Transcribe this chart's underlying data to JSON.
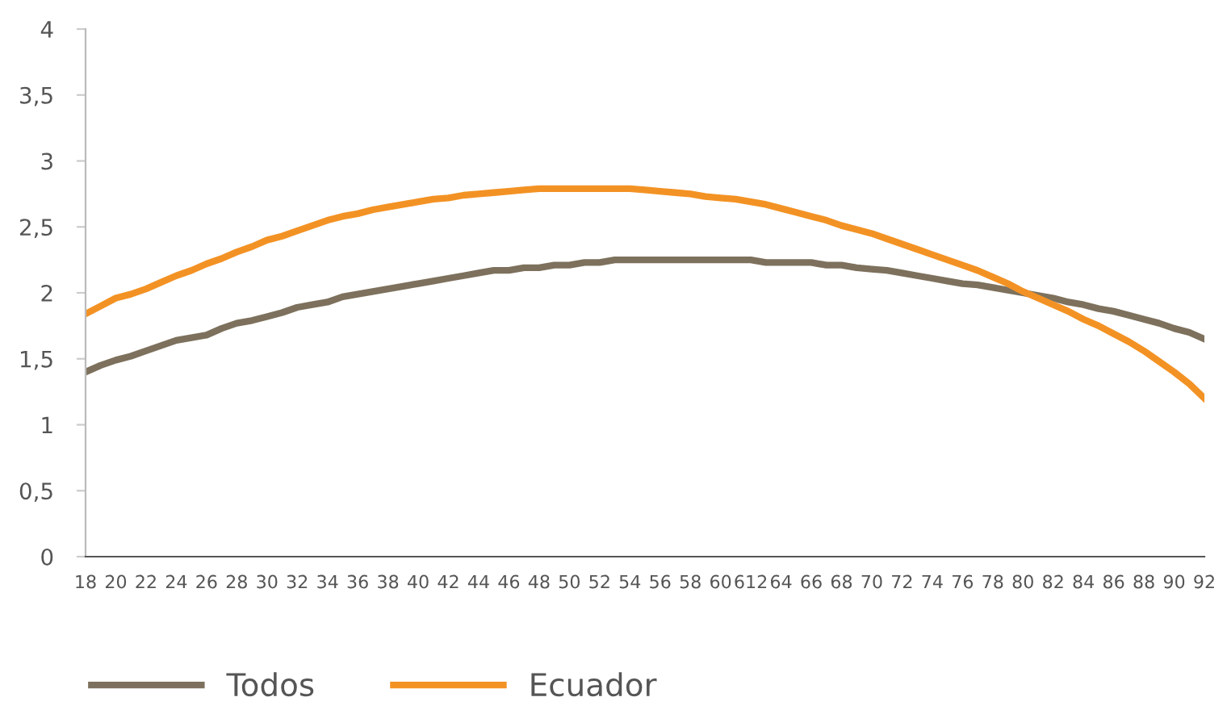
{
  "chart_data": {
    "type": "line",
    "categories": [
      "18",
      null,
      "20",
      null,
      "22",
      null,
      "24",
      null,
      "26",
      null,
      "28",
      null,
      "30",
      null,
      "32",
      null,
      "34",
      null,
      "36",
      null,
      "38",
      null,
      "40",
      null,
      "42",
      null,
      "44",
      null,
      "46",
      null,
      "48",
      null,
      "50",
      null,
      "52",
      null,
      "54",
      null,
      "56",
      null,
      "58",
      null,
      "60",
      null,
      "612",
      null,
      "64",
      null,
      "66",
      null,
      "68",
      null,
      "70",
      null,
      "72",
      null,
      "74",
      null,
      "76",
      null,
      "78",
      null,
      "80",
      null,
      "82",
      null,
      "84",
      null,
      "86",
      null,
      "88",
      null,
      "90",
      null,
      "92"
    ],
    "series": [
      {
        "name": "Todos",
        "color": "#7d715d",
        "values": [
          1.4,
          1.45,
          1.49,
          1.52,
          1.56,
          1.6,
          1.64,
          1.66,
          1.68,
          1.73,
          1.77,
          1.79,
          1.82,
          1.85,
          1.89,
          1.91,
          1.93,
          1.97,
          1.99,
          2.01,
          2.03,
          2.05,
          2.07,
          2.09,
          2.11,
          2.13,
          2.15,
          2.17,
          2.17,
          2.19,
          2.19,
          2.21,
          2.21,
          2.23,
          2.23,
          2.25,
          2.25,
          2.25,
          2.25,
          2.25,
          2.25,
          2.25,
          2.25,
          2.25,
          2.25,
          2.23,
          2.23,
          2.23,
          2.23,
          2.21,
          2.21,
          2.19,
          2.18,
          2.17,
          2.15,
          2.13,
          2.11,
          2.09,
          2.07,
          2.06,
          2.04,
          2.02,
          2.0,
          1.98,
          1.96,
          1.93,
          1.91,
          1.88,
          1.86,
          1.83,
          1.8,
          1.77,
          1.73,
          1.7,
          1.65
        ]
      },
      {
        "name": "Ecuador",
        "color": "#f39224",
        "values": [
          1.84,
          1.9,
          1.96,
          1.99,
          2.03,
          2.08,
          2.13,
          2.17,
          2.22,
          2.26,
          2.31,
          2.35,
          2.4,
          2.43,
          2.47,
          2.51,
          2.55,
          2.58,
          2.6,
          2.63,
          2.65,
          2.67,
          2.69,
          2.71,
          2.72,
          2.74,
          2.75,
          2.76,
          2.77,
          2.78,
          2.79,
          2.79,
          2.79,
          2.79,
          2.79,
          2.79,
          2.79,
          2.78,
          2.77,
          2.76,
          2.75,
          2.73,
          2.72,
          2.71,
          2.69,
          2.67,
          2.64,
          2.61,
          2.58,
          2.55,
          2.51,
          2.48,
          2.45,
          2.41,
          2.37,
          2.33,
          2.29,
          2.25,
          2.21,
          2.17,
          2.12,
          2.07,
          2.01,
          1.96,
          1.91,
          1.86,
          1.8,
          1.75,
          1.69,
          1.63,
          1.56,
          1.48,
          1.4,
          1.31,
          1.2
        ]
      }
    ],
    "ylim": [
      0,
      4
    ],
    "yticks": [
      0,
      {
        "value": 0.5,
        "label": "0,5"
      },
      1,
      {
        "value": 1.5,
        "label": "1,5"
      },
      2,
      {
        "value": 2.5,
        "label": "2,5"
      },
      3,
      {
        "value": 3.5,
        "label": "3,5"
      },
      4
    ],
    "grid": false,
    "legend": "bottom",
    "marker": "none",
    "line_style": "solid"
  }
}
